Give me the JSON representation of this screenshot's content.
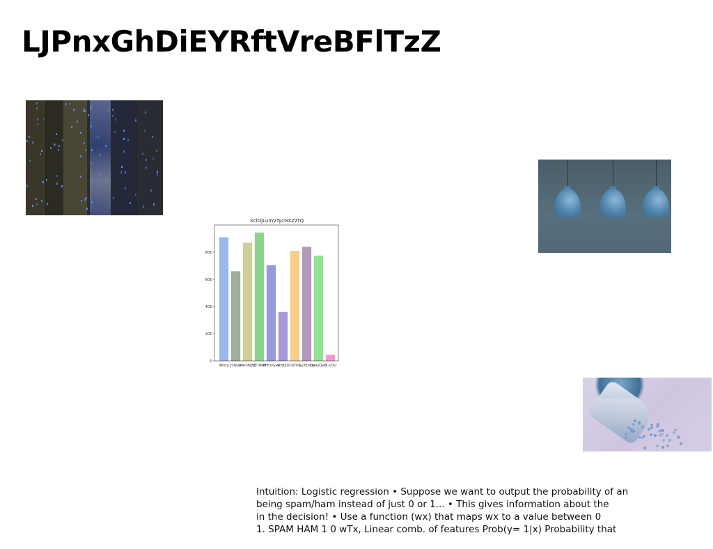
{
  "slide": {
    "title": "LJPnxGhDiEYRftVreBFlTzZ",
    "body_lines": [
      "Intuition: Logistic regression • Suppose we want to output the probability of an",
      "being spam/ham instead of just 0 or 1... • This gives information about the",
      "in the decision! • Use a function (wx) that maps wx to a value between 0",
      "1. SPAM HAM 1 0 wTx, Linear comb. of features Prob(y= 1|x) Probability that"
    ],
    "images": [
      {
        "name": "city-night-photo"
      },
      {
        "name": "blue-pendant-lamps-photo"
      },
      {
        "name": "blue-beads-scoop-photo"
      }
    ]
  },
  "chart_data": {
    "type": "bar",
    "title": "kclOjLumVTycGXZZtQ",
    "categories": [
      "lNnty",
      "zcNoR",
      "oAmNZZ",
      "hTUMH",
      "nHrVGvs",
      "etNQD",
      "ODVs",
      "SyXmQz",
      "tzaGQyB",
      "G kDU"
    ],
    "values": [
      910,
      660,
      870,
      945,
      705,
      360,
      810,
      840,
      775,
      45
    ],
    "colors": [
      "#8fb0ee",
      "#95a592",
      "#c9c98e",
      "#7fcf7f",
      "#8b8fd8",
      "#9f8fd6",
      "#f7c97c",
      "#a98fb3",
      "#86e086",
      "#f08ad0"
    ],
    "yticks": [
      "0",
      "200",
      "400",
      "600",
      "800"
    ],
    "ylim": [
      0,
      1000
    ]
  }
}
